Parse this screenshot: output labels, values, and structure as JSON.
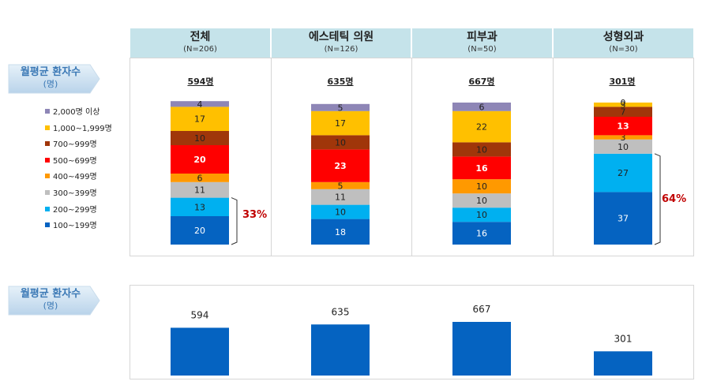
{
  "row_label_1": {
    "main": "월평균 환자수",
    "sub": "(명)"
  },
  "row_label_2": {
    "main": "월평균 환자수",
    "sub": "(명)"
  },
  "groups": [
    {
      "name": "전체",
      "n": "(N=206)",
      "total": "594명",
      "bracket_pct": "33%"
    },
    {
      "name": "에스테틱 의원",
      "n": "(N=126)",
      "total": "635명",
      "bracket_pct": ""
    },
    {
      "name": "피부과",
      "n": "(N=50)",
      "total": "667명",
      "bracket_pct": ""
    },
    {
      "name": "성형외과",
      "n": "(N=30)",
      "total": "301명",
      "bracket_pct": "64%"
    }
  ],
  "legend": [
    {
      "label": "2,000명 이상",
      "color": "#8e86b6"
    },
    {
      "label": "1,000~1,999명",
      "color": "#ffc000"
    },
    {
      "label": "700~999명",
      "color": "#a0360a"
    },
    {
      "label": "500~699명",
      "color": "#ff0000"
    },
    {
      "label": "400~499명",
      "color": "#ff9900"
    },
    {
      "label": "300~399명",
      "color": "#bfbfbf"
    },
    {
      "label": "200~299명",
      "color": "#00b0f0"
    },
    {
      "label": "100~199명",
      "color": "#0563c1"
    }
  ],
  "chart_data": [
    {
      "type": "bar",
      "stacked": true,
      "percent": true,
      "categories": [
        "전체",
        "에스테틱 의원",
        "피부과",
        "성형외과"
      ],
      "series": [
        {
          "name": "100~199명",
          "values": [
            20,
            18,
            16,
            37
          ]
        },
        {
          "name": "200~299명",
          "values": [
            13,
            10,
            10,
            27
          ]
        },
        {
          "name": "300~399명",
          "values": [
            11,
            11,
            10,
            10
          ]
        },
        {
          "name": "400~499명",
          "values": [
            6,
            5,
            10,
            3
          ]
        },
        {
          "name": "500~699명",
          "values": [
            20,
            23,
            16,
            13
          ]
        },
        {
          "name": "700~999명",
          "values": [
            10,
            10,
            10,
            7
          ]
        },
        {
          "name": "1,000~1,999명",
          "values": [
            17,
            17,
            22,
            3
          ]
        },
        {
          "name": "2,000명 이상",
          "values": [
            4,
            5,
            6,
            0
          ]
        }
      ]
    },
    {
      "type": "bar",
      "categories": [
        "전체",
        "에스테틱 의원",
        "피부과",
        "성형외과"
      ],
      "values": [
        594,
        635,
        667,
        301
      ]
    }
  ]
}
